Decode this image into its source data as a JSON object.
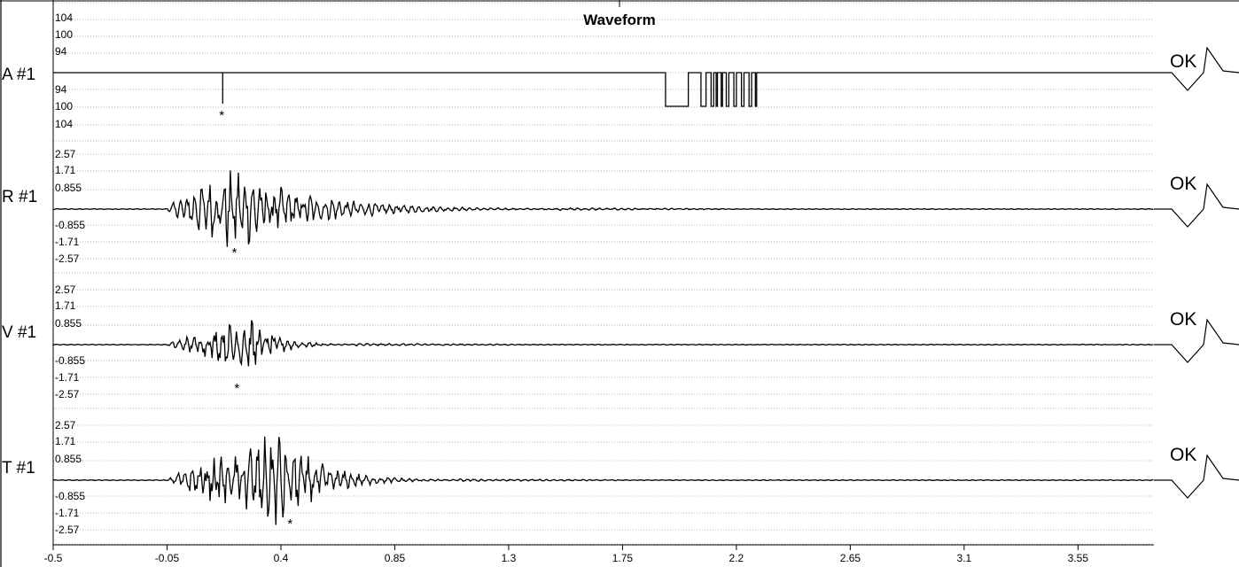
{
  "chart_data": {
    "type": "line",
    "title": "Waveform",
    "x_ticks": [
      "-0.5",
      "-0.05",
      "0.4",
      "0.85",
      "1.3",
      "1.75",
      "2.2",
      "2.65",
      "3.1",
      "3.55"
    ],
    "xlim": [
      -0.5,
      3.85
    ],
    "grid": true,
    "channels": [
      {
        "name": "A #1",
        "status": "OK",
        "y_ticks_upper": [
          "104",
          "100",
          "94"
        ],
        "y_ticks_lower": [
          "94",
          "100",
          "104"
        ],
        "marker_x": 0.17,
        "description_of_signal": "flat baseline with a downward spike near x=0.17 and a burst of rectangular pulses between x=1.92 and x=2.28"
      },
      {
        "name": "R #1",
        "status": "OK",
        "y_ticks_upper": [
          "2.57",
          "1.71",
          "0.855"
        ],
        "y_ticks_lower": [
          "-0.855",
          "-1.71",
          "-2.57"
        ],
        "ylim": [
          -2.57,
          2.57
        ],
        "marker_x": 0.22,
        "envelope": {
          "start": -0.05,
          "peak": 0.22,
          "end": 1.5,
          "peak_amp": 2.1
        }
      },
      {
        "name": "V #1",
        "status": "OK",
        "y_ticks_upper": [
          "2.57",
          "1.71",
          "0.855"
        ],
        "y_ticks_lower": [
          "-0.855",
          "-1.71",
          "-2.57"
        ],
        "ylim": [
          -2.57,
          2.57
        ],
        "marker_x": 0.23,
        "envelope": {
          "start": -0.05,
          "peak": 0.3,
          "end": 0.7,
          "peak_amp": 1.35
        }
      },
      {
        "name": "T #1",
        "status": "OK",
        "y_ticks_upper": [
          "2.57",
          "1.71",
          "0.855"
        ],
        "y_ticks_lower": [
          "-0.855",
          "-1.71",
          "-2.57"
        ],
        "ylim": [
          -2.57,
          2.57
        ],
        "marker_x": 0.44,
        "envelope": {
          "start": -0.05,
          "peak": 0.4,
          "end": 1.1,
          "peak_amp": 2.3
        }
      }
    ]
  }
}
